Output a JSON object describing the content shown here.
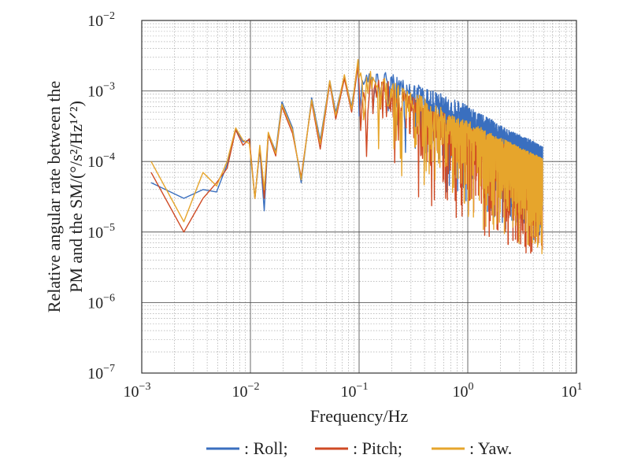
{
  "chart_data": {
    "type": "line",
    "xscale": "log",
    "yscale": "log",
    "xlim": [
      0.001,
      10
    ],
    "ylim": [
      1e-07,
      0.01
    ],
    "grid": true,
    "xlabel": "Frequency/Hz",
    "ylabel_line1": "Relative angular rate between the",
    "ylabel_line2": "PM and the SM/(°/s²/Hz¹ᐟ²)",
    "x_ticks": [
      {
        "value": 0.001,
        "base": "10",
        "exp": "−3"
      },
      {
        "value": 0.01,
        "base": "10",
        "exp": "−2"
      },
      {
        "value": 0.1,
        "base": "10",
        "exp": "−1"
      },
      {
        "value": 1,
        "base": "10",
        "exp": "0"
      },
      {
        "value": 10,
        "base": "10",
        "exp": "1"
      }
    ],
    "y_ticks": [
      {
        "value": 1e-07,
        "base": "10",
        "exp": "−7"
      },
      {
        "value": 1e-06,
        "base": "10",
        "exp": "−6"
      },
      {
        "value": 1e-05,
        "base": "10",
        "exp": "−5"
      },
      {
        "value": 0.0001,
        "base": "10",
        "exp": "−4"
      },
      {
        "value": 0.001,
        "base": "10",
        "exp": "−3"
      },
      {
        "value": 0.01,
        "base": "10",
        "exp": "−2"
      }
    ],
    "legend": [
      {
        "label": ": Roll;",
        "color": "#3a6fbf"
      },
      {
        "label": ": Pitch;",
        "color": "#cf4a24"
      },
      {
        "label": ": Yaw.",
        "color": "#e6a52c"
      }
    ],
    "legend_position": "bottom",
    "series": [
      {
        "name": "Roll",
        "color": "#3a6fbf",
        "x": [
          0.00122,
          0.00244,
          0.00366,
          0.00488,
          0.0061,
          0.00732,
          0.00854,
          0.00977,
          0.011,
          0.0122,
          0.0134,
          0.0146,
          0.0171,
          0.0195,
          0.0244,
          0.0293,
          0.0366,
          0.0439,
          0.0537,
          0.061,
          0.0732,
          0.0854,
          0.0977,
          0.11,
          0.122,
          0.146,
          0.171,
          0.195,
          0.244,
          0.293,
          0.366,
          0.488,
          0.61,
          0.732,
          0.977,
          1.22,
          1.46,
          1.71,
          1.95,
          2.44,
          2.93,
          3.42,
          3.91,
          4.39,
          4.88
        ],
        "y": [
          5e-05,
          3e-05,
          4e-05,
          3.7e-05,
          9e-05,
          0.00029,
          0.00019,
          0.0002,
          3e-05,
          0.00015,
          2e-05,
          0.00025,
          0.00014,
          0.0007,
          0.0003,
          5e-05,
          0.0008,
          0.0002,
          0.0014,
          0.0005,
          0.0016,
          0.0006,
          0.0025,
          0.0012,
          0.0022,
          0.0018,
          0.002,
          0.0016,
          0.0015,
          0.0012,
          0.0011,
          0.0009,
          0.0008,
          0.0007,
          0.0006,
          0.00045,
          0.0004,
          0.00035,
          0.0003,
          0.00025,
          0.00022,
          0.0002,
          0.00018,
          0.00016,
          0.00015
        ]
      },
      {
        "name": "Pitch",
        "color": "#cf4a24",
        "x": [
          0.00122,
          0.00244,
          0.00366,
          0.00488,
          0.0061,
          0.00732,
          0.00854,
          0.00977,
          0.011,
          0.0122,
          0.0134,
          0.0146,
          0.0171,
          0.0195,
          0.0244,
          0.0293,
          0.0366,
          0.0439,
          0.0537,
          0.061,
          0.0732,
          0.0854,
          0.0977,
          0.11,
          0.122,
          0.146,
          0.171,
          0.195,
          0.244,
          0.293,
          0.366,
          0.488,
          0.61,
          0.732,
          0.977,
          1.22,
          1.46,
          1.71,
          1.95,
          2.44,
          2.93,
          3.42,
          3.91,
          4.39,
          4.88
        ],
        "y": [
          7e-05,
          1e-05,
          3e-05,
          5e-05,
          8e-05,
          0.00028,
          0.00017,
          0.00021,
          3e-05,
          0.00016,
          3e-05,
          0.00024,
          0.00012,
          0.0006,
          0.00025,
          6e-05,
          0.0007,
          0.00015,
          0.0013,
          0.0004,
          0.0015,
          0.0005,
          0.0023,
          0.001,
          0.0019,
          0.0014,
          0.0015,
          0.0012,
          0.001,
          0.0008,
          0.0007,
          0.0005,
          0.00045,
          0.00035,
          0.0003,
          0.00025,
          0.00022,
          0.0002,
          0.00017,
          0.00015,
          0.00013,
          0.00012,
          0.00011,
          0.0001,
          9e-05
        ]
      },
      {
        "name": "Yaw",
        "color": "#e6a52c",
        "x": [
          0.00122,
          0.00244,
          0.00366,
          0.00488,
          0.0061,
          0.00732,
          0.00854,
          0.00977,
          0.011,
          0.0122,
          0.0134,
          0.0146,
          0.0171,
          0.0195,
          0.0244,
          0.0293,
          0.0366,
          0.0439,
          0.0537,
          0.061,
          0.0732,
          0.0854,
          0.0977,
          0.11,
          0.122,
          0.146,
          0.171,
          0.195,
          0.244,
          0.293,
          0.366,
          0.488,
          0.61,
          0.732,
          0.977,
          1.22,
          1.46,
          1.71,
          1.95,
          2.44,
          2.93,
          3.42,
          3.91,
          4.39,
          4.88
        ],
        "y": [
          0.0001,
          1.4e-05,
          7e-05,
          4.5e-05,
          0.0001,
          0.0003,
          0.0002,
          0.00018,
          3e-05,
          0.00017,
          4e-05,
          0.00026,
          0.00013,
          0.00065,
          0.00028,
          5.5e-05,
          0.00075,
          0.00018,
          0.0014,
          0.00045,
          0.0017,
          0.00055,
          0.0028,
          0.0011,
          0.0021,
          0.0015,
          0.0017,
          0.0013,
          0.0011,
          0.0009,
          0.0008,
          0.0006,
          0.0005,
          0.0004,
          0.00035,
          0.0003,
          0.00025,
          0.00022,
          0.0002,
          0.00017,
          0.00015,
          0.00013,
          0.00012,
          0.00011,
          0.0001
        ]
      }
    ]
  }
}
